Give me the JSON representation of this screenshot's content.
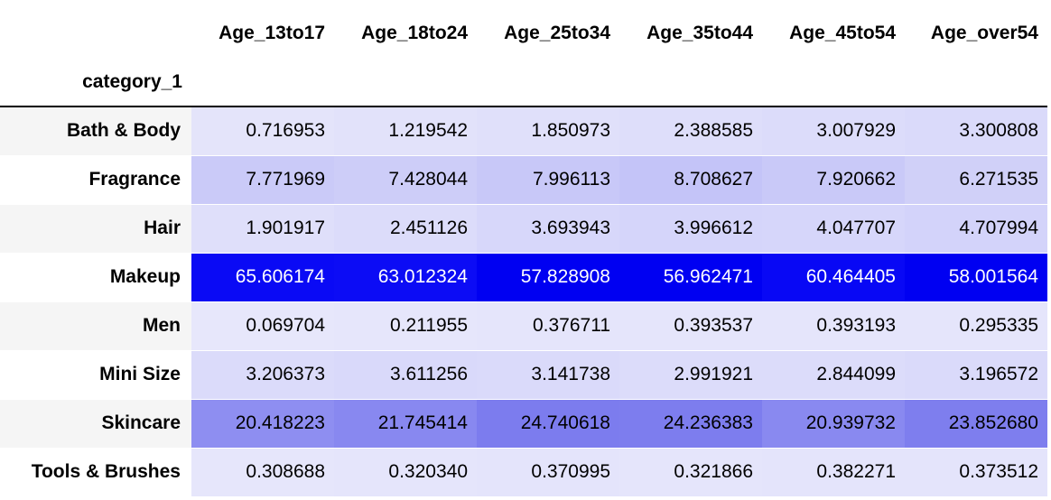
{
  "table": {
    "index_name": "category_1",
    "columns": [
      "Age_13to17",
      "Age_18to24",
      "Age_25to34",
      "Age_35to44",
      "Age_45to54",
      "Age_over54"
    ],
    "rows": [
      {
        "label": "Bath & Body",
        "values": [
          "0.716953",
          "1.219542",
          "1.850973",
          "2.388585",
          "3.007929",
          "3.300808"
        ]
      },
      {
        "label": "Fragrance",
        "values": [
          "7.771969",
          "7.428044",
          "7.996113",
          "8.708627",
          "7.920662",
          "6.271535"
        ]
      },
      {
        "label": "Hair",
        "values": [
          "1.901917",
          "2.451126",
          "3.693943",
          "3.996612",
          "4.047707",
          "4.707994"
        ]
      },
      {
        "label": "Makeup",
        "values": [
          "65.606174",
          "63.012324",
          "57.828908",
          "56.962471",
          "60.464405",
          "58.001564"
        ]
      },
      {
        "label": "Men",
        "values": [
          "0.069704",
          "0.211955",
          "0.376711",
          "0.393537",
          "0.393193",
          "0.295335"
        ]
      },
      {
        "label": "Mini Size",
        "values": [
          "3.206373",
          "3.611256",
          "3.141738",
          "2.991921",
          "2.844099",
          "3.196572"
        ]
      },
      {
        "label": "Skincare",
        "values": [
          "20.418223",
          "21.745414",
          "24.740618",
          "24.236383",
          "20.939732",
          "23.852680"
        ]
      },
      {
        "label": "Tools & Brushes",
        "values": [
          "0.308688",
          "0.320340",
          "0.370995",
          "0.321866",
          "0.382271",
          "0.373512"
        ]
      }
    ]
  },
  "colors": {
    "cell_bg": [
      [
        "#e4e4fa",
        "#e2e2fa",
        "#e0e0fa",
        "#dedefa",
        "#dcdcfa",
        "#dadafa"
      ],
      [
        "#cacaf8",
        "#cdcdf8",
        "#c8c8f8",
        "#c4c4f8",
        "#c9c9f8",
        "#d0d0f8"
      ],
      [
        "#dfdffa",
        "#dcdcfa",
        "#d7d7fa",
        "#d5d5fa",
        "#d6d6fa",
        "#d3d3fa"
      ],
      [
        "#0a0af5",
        "#0c0cf5",
        "#0000f2",
        "#0000f2",
        "#0808f5",
        "#0000f2"
      ],
      [
        "#e7e7fb",
        "#e6e6fb",
        "#e5e5fb",
        "#e5e5fb",
        "#e5e5fb",
        "#e5e5fb"
      ],
      [
        "#dbdbfa",
        "#d9d9fa",
        "#dadafa",
        "#dcdcfa",
        "#dcdcfa",
        "#dadafa"
      ],
      [
        "#8e8ef1",
        "#8888f0",
        "#7c7cee",
        "#7d7dee",
        "#8989f0",
        "#7e7eee"
      ],
      [
        "#e6e6fb",
        "#e5e5fb",
        "#e4e4fb",
        "#e5e5fb",
        "#e4e4fb",
        "#e4e4fb"
      ]
    ],
    "hot_text_row": 3
  }
}
